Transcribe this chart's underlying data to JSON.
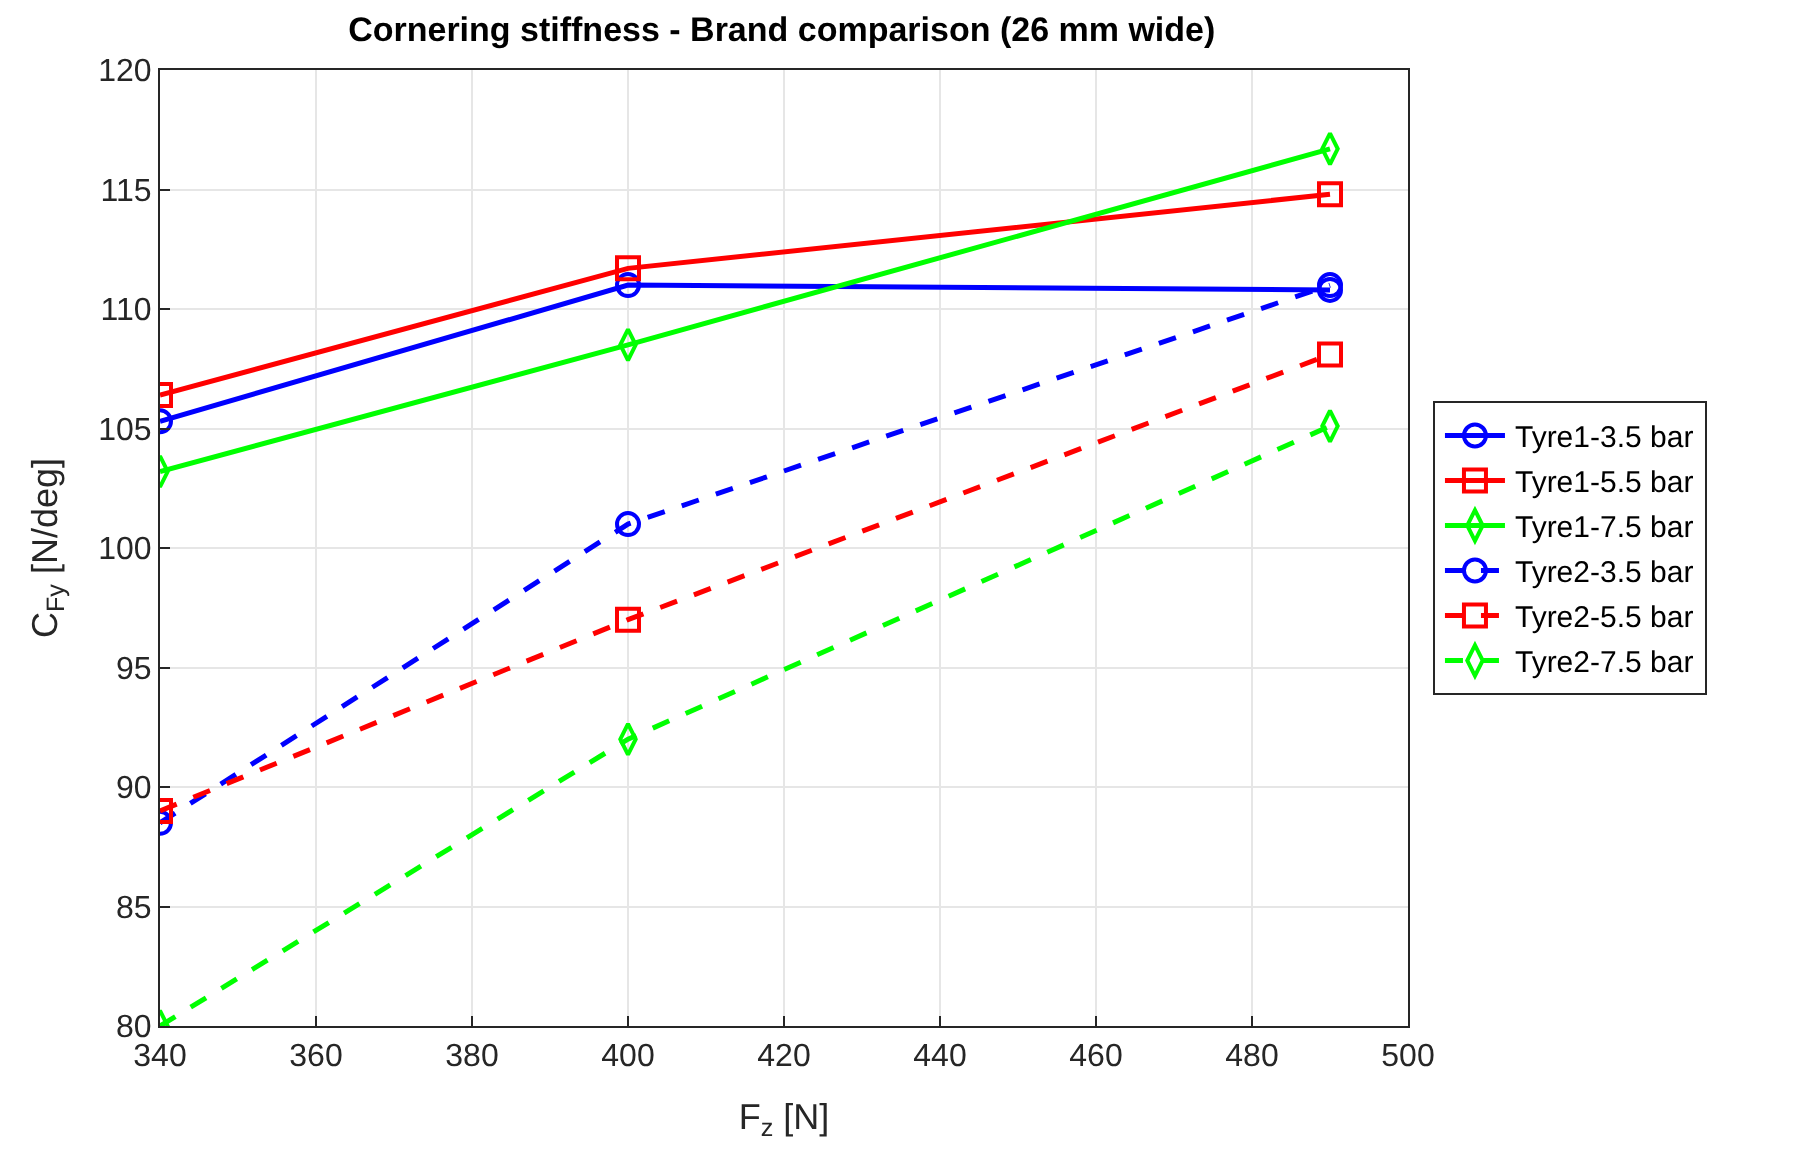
{
  "chart_data": {
    "type": "line",
    "title": "Cornering stiffness - Brand comparison (26 mm wide)",
    "xlabel": "F$_{z}$ [N]",
    "ylabel": "C$_{Fy}$ [N/deg]",
    "x": [
      340,
      400,
      490
    ],
    "xlim": [
      340,
      500
    ],
    "xticks": [
      340,
      360,
      380,
      400,
      420,
      440,
      460,
      480,
      500
    ],
    "ylim": [
      80,
      120
    ],
    "yticks": [
      80,
      85,
      90,
      95,
      100,
      105,
      110,
      115,
      120
    ],
    "grid": true,
    "legend": "right",
    "series": [
      {
        "name": "Tyre1-3.5 bar",
        "color": "#0000ff",
        "marker": "circle",
        "line_style": "solid",
        "values": [
          105.3,
          111.0,
          110.8
        ]
      },
      {
        "name": "Tyre1-5.5 bar",
        "color": "#ff0000",
        "marker": "square",
        "line_style": "solid",
        "values": [
          106.4,
          111.7,
          114.8
        ]
      },
      {
        "name": "Tyre1-7.5 bar",
        "color": "#00ff00",
        "marker": "diamond",
        "line_style": "solid",
        "values": [
          103.2,
          108.5,
          116.7
        ]
      },
      {
        "name": "Tyre2-3.5 bar",
        "color": "#0000ff",
        "marker": "circle",
        "line_style": "dashed",
        "values": [
          88.5,
          101.0,
          111.0
        ]
      },
      {
        "name": "Tyre2-5.5 bar",
        "color": "#ff0000",
        "marker": "square",
        "line_style": "dashed",
        "values": [
          89.0,
          97.0,
          108.1
        ]
      },
      {
        "name": "Tyre2-7.5 bar",
        "color": "#00ff00",
        "marker": "diamond",
        "line_style": "dashed",
        "values": [
          80.0,
          92.0,
          105.1
        ]
      }
    ]
  }
}
